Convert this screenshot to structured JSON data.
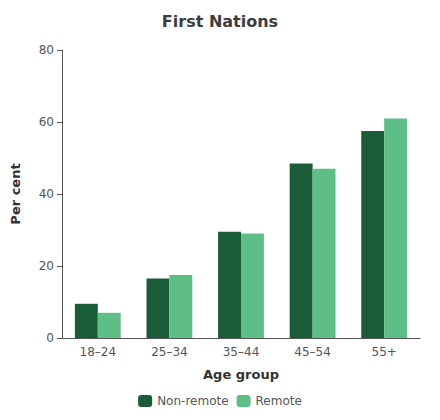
{
  "chart_data": {
    "type": "bar",
    "title": "First Nations",
    "xlabel": "Age group",
    "ylabel": "Per cent",
    "categories": [
      "18–24",
      "25–34",
      "35–44",
      "45–54",
      "55+"
    ],
    "series": [
      {
        "name": "Non-remote",
        "color": "#1a5c38",
        "values": [
          9.5,
          16.5,
          29.5,
          48.5,
          57.5
        ]
      },
      {
        "name": "Remote",
        "color": "#5dbf85",
        "values": [
          7.0,
          17.5,
          29.0,
          47.0,
          61.0
        ]
      }
    ],
    "ylim": [
      0,
      80
    ],
    "yticks": [
      0,
      20,
      40,
      60,
      80
    ],
    "grid": false,
    "legend": "bottom"
  }
}
